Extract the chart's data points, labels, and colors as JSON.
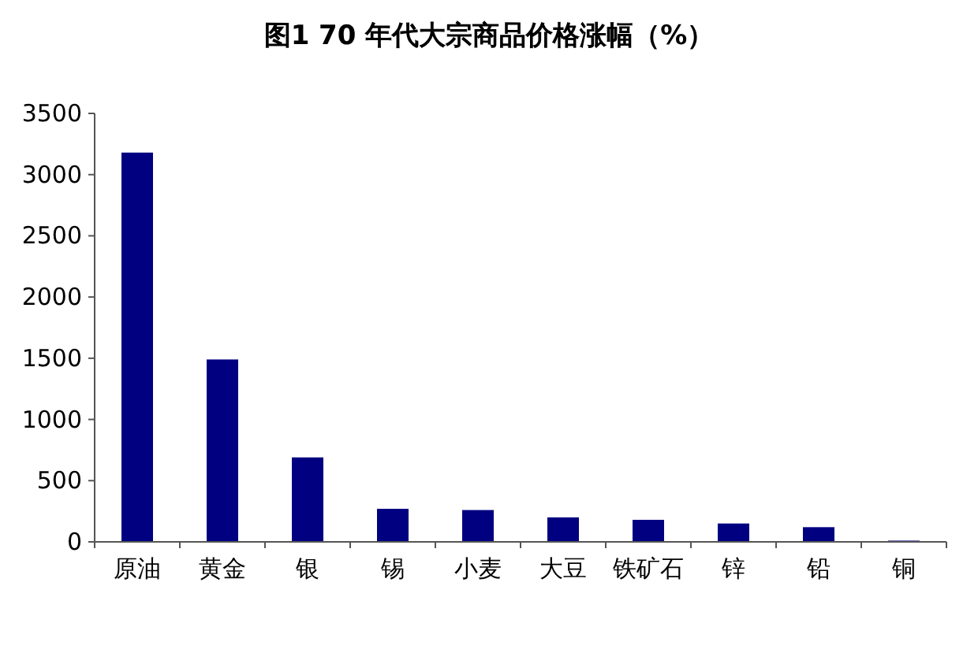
{
  "chart_data": {
    "type": "bar",
    "title": "图1  70 年代大宗商品价格涨幅（%）",
    "categories": [
      "原油",
      "黄金",
      "银",
      "锡",
      "小麦",
      "大豆",
      "铁矿石",
      "锌",
      "铅",
      "铜"
    ],
    "values": [
      3180,
      1490,
      690,
      270,
      260,
      200,
      180,
      150,
      120,
      10
    ],
    "color": "#000080",
    "ylim": [
      0,
      3500
    ],
    "yticks": [
      0,
      500,
      1000,
      1500,
      2000,
      2500,
      3000,
      3500
    ]
  }
}
